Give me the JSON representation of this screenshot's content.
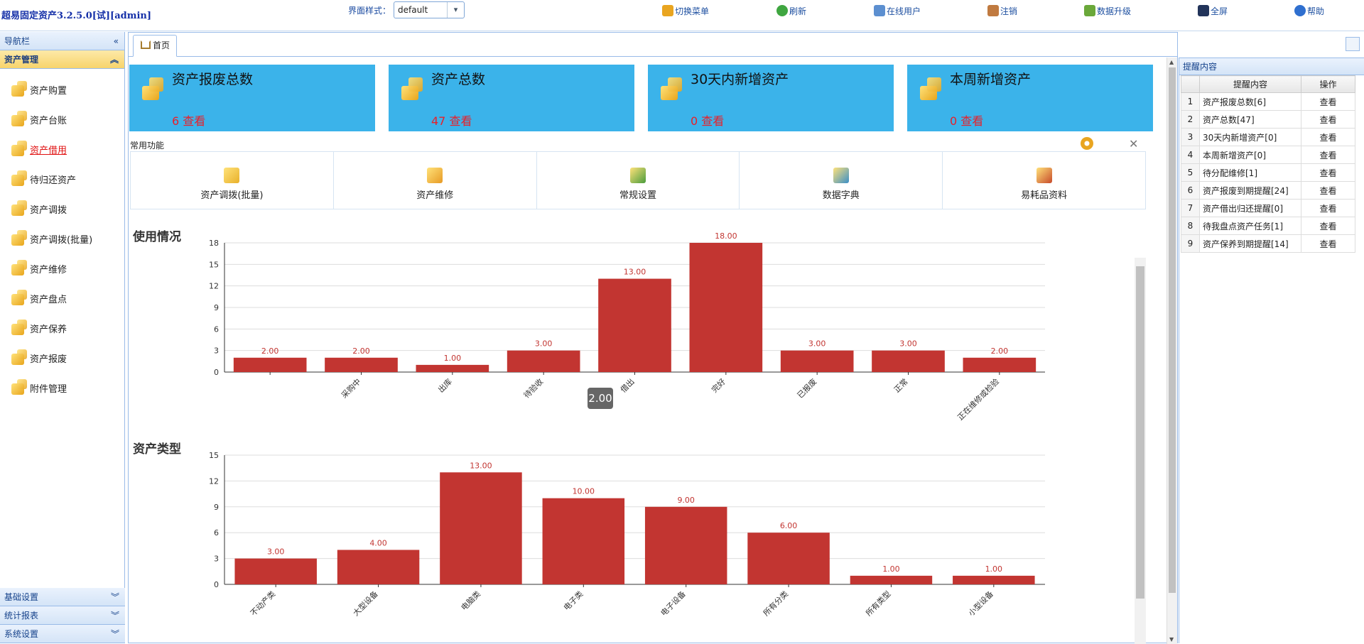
{
  "header": {
    "app_title": "超易固定资产3.2.5.0[试][admin]",
    "style_label": "界面样式：",
    "style_value": "default",
    "toolbar": [
      {
        "label": "切换菜单",
        "icon": "switch-menu-icon"
      },
      {
        "label": "刷新",
        "icon": "refresh-icon"
      },
      {
        "label": "在线用户",
        "icon": "online-users-icon"
      },
      {
        "label": "注销",
        "icon": "logout-icon"
      },
      {
        "label": "数据升级",
        "icon": "data-upgrade-icon"
      },
      {
        "label": "全屏",
        "icon": "fullscreen-icon"
      },
      {
        "label": "帮助",
        "icon": "help-icon"
      }
    ]
  },
  "sidebar": {
    "nav_title": "导航栏",
    "active_group": "资产管理",
    "items": [
      {
        "label": "资产购置",
        "icon": "asset-purchase-icon"
      },
      {
        "label": "资产台账",
        "icon": "asset-ledger-icon"
      },
      {
        "label": "资产借用",
        "icon": "asset-borrow-icon"
      },
      {
        "label": "待归还资产",
        "icon": "pending-return-icon"
      },
      {
        "label": "资产调拨",
        "icon": "asset-transfer-icon"
      },
      {
        "label": "资产调拨(批量)",
        "icon": "batch-transfer-icon"
      },
      {
        "label": "资产维修",
        "icon": "asset-repair-icon"
      },
      {
        "label": "资产盘点",
        "icon": "asset-inventory-icon"
      },
      {
        "label": "资产保养",
        "icon": "asset-maintenance-icon"
      },
      {
        "label": "资产报废",
        "icon": "asset-scrap-icon"
      },
      {
        "label": "附件管理",
        "icon": "attachment-icon"
      }
    ],
    "selected_index": 2,
    "bottom_groups": [
      "基础设置",
      "统计报表",
      "系统设置"
    ]
  },
  "tabs": [
    {
      "label": "首页",
      "icon": "home-icon"
    }
  ],
  "stats": [
    {
      "title": "资产报废总数",
      "value": "6",
      "link": "查看"
    },
    {
      "title": "资产总数",
      "value": "47",
      "link": "查看"
    },
    {
      "title": "30天内新增资产",
      "value": "0",
      "link": "查看"
    },
    {
      "title": "本周新增资产",
      "value": "0",
      "link": "查看"
    }
  ],
  "common_functions": {
    "label": "常用功能",
    "items": [
      {
        "label": "资产调拨(批量)",
        "icon": "batch-transfer-icon"
      },
      {
        "label": "资产维修",
        "icon": "repair-icon"
      },
      {
        "label": "常规设置",
        "icon": "settings-cube-icon"
      },
      {
        "label": "数据字典",
        "icon": "dictionary-cube-icon"
      },
      {
        "label": "易耗品资料",
        "icon": "books-icon"
      }
    ]
  },
  "tooltip": "2.00",
  "chart_data": [
    {
      "type": "bar",
      "title": "使用情况",
      "categories": [
        "",
        "采购中",
        "出库",
        "待验收",
        "借出",
        "完好",
        "已报废",
        "正常",
        "正在维修或检验"
      ],
      "values": [
        2,
        2,
        1,
        3,
        13,
        18,
        3,
        3,
        2
      ],
      "value_labels": [
        "2.00",
        "2.00",
        "1.00",
        "3.00",
        "13.00",
        "18.00",
        "3.00",
        "3.00",
        "2.00"
      ],
      "yticks": [
        "0",
        "3",
        "6",
        "9",
        "12",
        "15",
        "18"
      ],
      "ylim": [
        0,
        18
      ],
      "color": "#c23531",
      "grid": true
    },
    {
      "type": "bar",
      "title": "资产类型",
      "categories": [
        "不动产类",
        "大型设备",
        "电脑类",
        "电子类",
        "电子设备",
        "所有分类",
        "所有类型",
        "小型设备"
      ],
      "values": [
        3,
        4,
        13,
        10,
        9,
        6,
        1,
        1
      ],
      "value_labels": [
        "3.00",
        "4.00",
        "13.00",
        "10.00",
        "9.00",
        "6.00",
        "1.00",
        "1.00"
      ],
      "yticks": [
        "0",
        "3",
        "6",
        "9",
        "12",
        "15"
      ],
      "ylim": [
        0,
        15
      ],
      "color": "#c23531",
      "grid": true
    }
  ],
  "reminders": {
    "title": "提醒内容",
    "columns": [
      "提醒内容",
      "操作"
    ],
    "rows": [
      {
        "n": "1",
        "text": "资产报废总数[6]",
        "op": "查看"
      },
      {
        "n": "2",
        "text": "资产总数[47]",
        "op": "查看"
      },
      {
        "n": "3",
        "text": "30天内新增资产[0]",
        "op": "查看"
      },
      {
        "n": "4",
        "text": "本周新增资产[0]",
        "op": "查看"
      },
      {
        "n": "5",
        "text": "待分配维修[1]",
        "op": "查看"
      },
      {
        "n": "6",
        "text": "资产报废到期提醒[24]",
        "op": "查看"
      },
      {
        "n": "7",
        "text": "资产借出归还提醒[0]",
        "op": "查看"
      },
      {
        "n": "8",
        "text": "待我盘点资产任务[1]",
        "op": "查看"
      },
      {
        "n": "9",
        "text": "资产保养到期提醒[14]",
        "op": "查看"
      }
    ]
  }
}
